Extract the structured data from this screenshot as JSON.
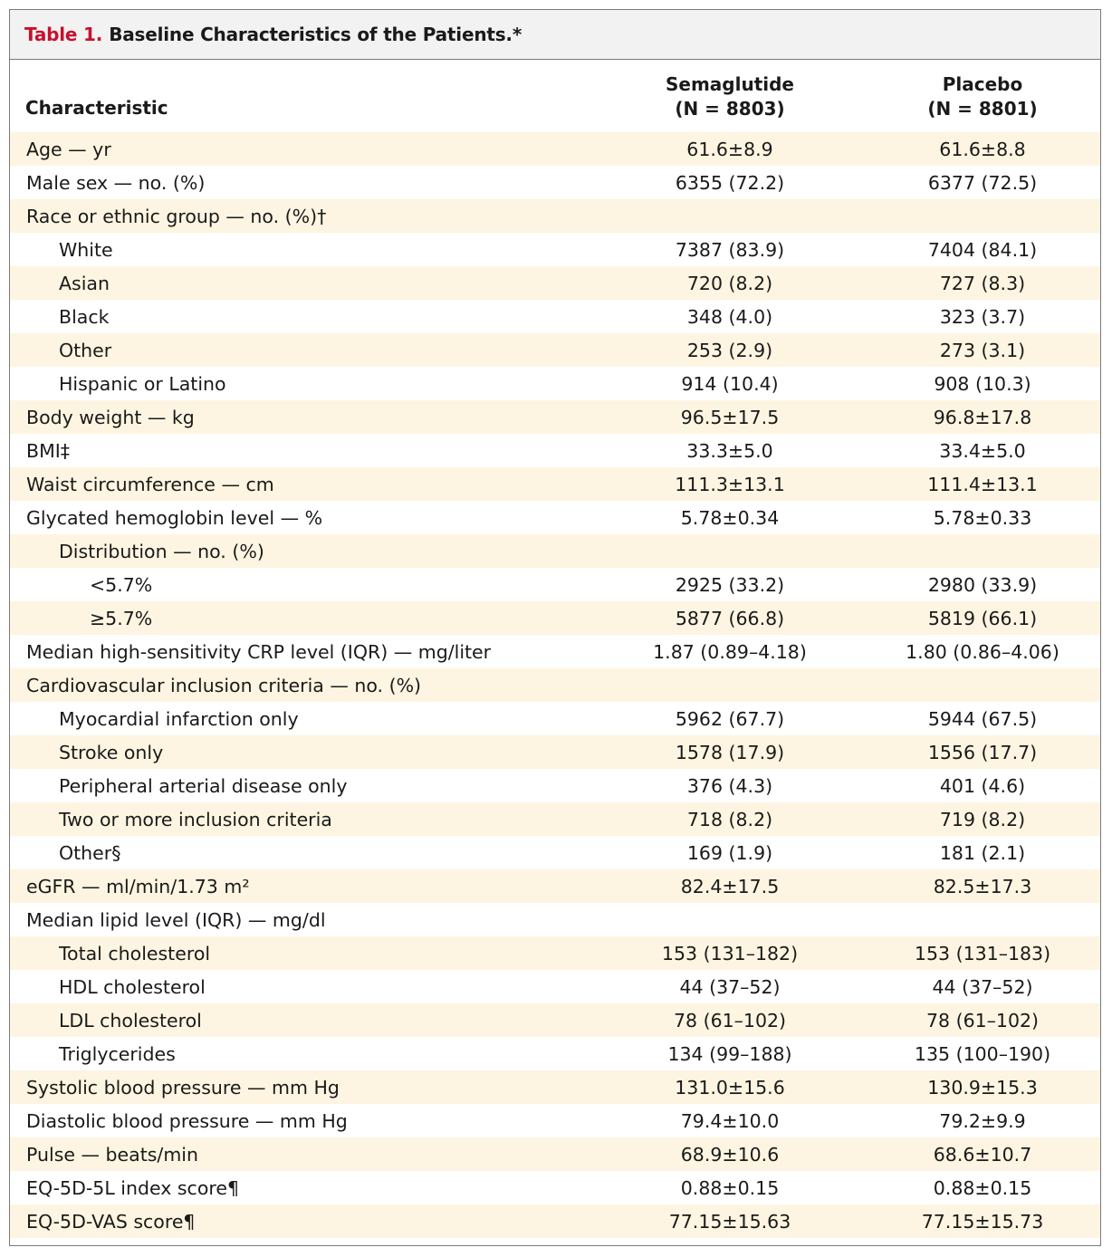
{
  "caption": {
    "number": "Table 1.",
    "title": "Baseline Characteristics of the Patients.*"
  },
  "columns": {
    "characteristic": "Characteristic",
    "group1_name": "Semaglutide",
    "group1_n": "(N = 8803)",
    "group2_name": "Placebo",
    "group2_n": "(N = 8801)"
  },
  "rows": [
    {
      "label": "Age — yr",
      "indent": 0,
      "semaglutide": "61.6±8.9",
      "placebo": "61.6±8.8"
    },
    {
      "label": "Male sex — no. (%)",
      "indent": 0,
      "semaglutide": "6355 (72.2)",
      "placebo": "6377 (72.5)"
    },
    {
      "label": "Race or ethnic group — no. (%)†",
      "indent": 0,
      "semaglutide": "",
      "placebo": ""
    },
    {
      "label": "White",
      "indent": 1,
      "semaglutide": "7387 (83.9)",
      "placebo": "7404 (84.1)"
    },
    {
      "label": "Asian",
      "indent": 1,
      "semaglutide": "720 (8.2)",
      "placebo": "727 (8.3)"
    },
    {
      "label": "Black",
      "indent": 1,
      "semaglutide": "348 (4.0)",
      "placebo": "323 (3.7)"
    },
    {
      "label": "Other",
      "indent": 1,
      "semaglutide": "253 (2.9)",
      "placebo": "273 (3.1)"
    },
    {
      "label": "Hispanic or Latino",
      "indent": 1,
      "semaglutide": "914 (10.4)",
      "placebo": "908 (10.3)"
    },
    {
      "label": "Body weight — kg",
      "indent": 0,
      "semaglutide": "96.5±17.5",
      "placebo": "96.8±17.8"
    },
    {
      "label": "BMI‡",
      "indent": 0,
      "semaglutide": "33.3±5.0",
      "placebo": "33.4±5.0"
    },
    {
      "label": "Waist circumference — cm",
      "indent": 0,
      "semaglutide": "111.3±13.1",
      "placebo": "111.4±13.1"
    },
    {
      "label": "Glycated hemoglobin level — %",
      "indent": 0,
      "semaglutide": "5.78±0.34",
      "placebo": "5.78±0.33"
    },
    {
      "label": "Distribution — no. (%)",
      "indent": 1,
      "semaglutide": "",
      "placebo": ""
    },
    {
      "label": "<5.7%",
      "indent": 2,
      "semaglutide": "2925 (33.2)",
      "placebo": "2980 (33.9)"
    },
    {
      "label": "≥5.7%",
      "indent": 2,
      "semaglutide": "5877 (66.8)",
      "placebo": "5819 (66.1)"
    },
    {
      "label": "Median high-sensitivity CRP level (IQR) — mg/liter",
      "indent": 0,
      "semaglutide": "1.87 (0.89–4.18)",
      "placebo": "1.80 (0.86–4.06)"
    },
    {
      "label": "Cardiovascular inclusion criteria — no. (%)",
      "indent": 0,
      "semaglutide": "",
      "placebo": ""
    },
    {
      "label": "Myocardial infarction only",
      "indent": 1,
      "semaglutide": "5962 (67.7)",
      "placebo": "5944 (67.5)"
    },
    {
      "label": "Stroke only",
      "indent": 1,
      "semaglutide": "1578 (17.9)",
      "placebo": "1556 (17.7)"
    },
    {
      "label": "Peripheral arterial disease only",
      "indent": 1,
      "semaglutide": "376 (4.3)",
      "placebo": "401 (4.6)"
    },
    {
      "label": "Two or more inclusion criteria",
      "indent": 1,
      "semaglutide": "718 (8.2)",
      "placebo": "719 (8.2)"
    },
    {
      "label": "Other§",
      "indent": 1,
      "semaglutide": "169 (1.9)",
      "placebo": "181 (2.1)"
    },
    {
      "label": "eGFR — ml/min/1.73 m²",
      "indent": 0,
      "semaglutide": "82.4±17.5",
      "placebo": "82.5±17.3"
    },
    {
      "label": "Median lipid level (IQR) — mg/dl",
      "indent": 0,
      "semaglutide": "",
      "placebo": ""
    },
    {
      "label": "Total cholesterol",
      "indent": 1,
      "semaglutide": "153 (131–182)",
      "placebo": "153 (131–183)"
    },
    {
      "label": "HDL cholesterol",
      "indent": 1,
      "semaglutide": "44 (37–52)",
      "placebo": "44 (37–52)"
    },
    {
      "label": "LDL cholesterol",
      "indent": 1,
      "semaglutide": "78 (61–102)",
      "placebo": "78 (61–102)"
    },
    {
      "label": "Triglycerides",
      "indent": 1,
      "semaglutide": "134 (99–188)",
      "placebo": "135 (100–190)"
    },
    {
      "label": "Systolic blood pressure — mm Hg",
      "indent": 0,
      "semaglutide": "131.0±15.6",
      "placebo": "130.9±15.3"
    },
    {
      "label": "Diastolic blood pressure — mm Hg",
      "indent": 0,
      "semaglutide": "79.4±10.0",
      "placebo": "79.2±9.9"
    },
    {
      "label": "Pulse — beats/min",
      "indent": 0,
      "semaglutide": "68.9±10.6",
      "placebo": "68.6±10.7"
    },
    {
      "label": "EQ-5D-5L index score¶",
      "indent": 0,
      "semaglutide": "0.88±0.15",
      "placebo": "0.88±0.15"
    },
    {
      "label": "EQ-5D-VAS score¶",
      "indent": 0,
      "semaglutide": "77.15±15.63",
      "placebo": "77.15±15.73"
    }
  ],
  "colors": {
    "caption_number": "#c8102e",
    "row_shade": "#fdf5e1",
    "caption_bg": "#f2f2f2",
    "border": "#7a7a7a"
  }
}
